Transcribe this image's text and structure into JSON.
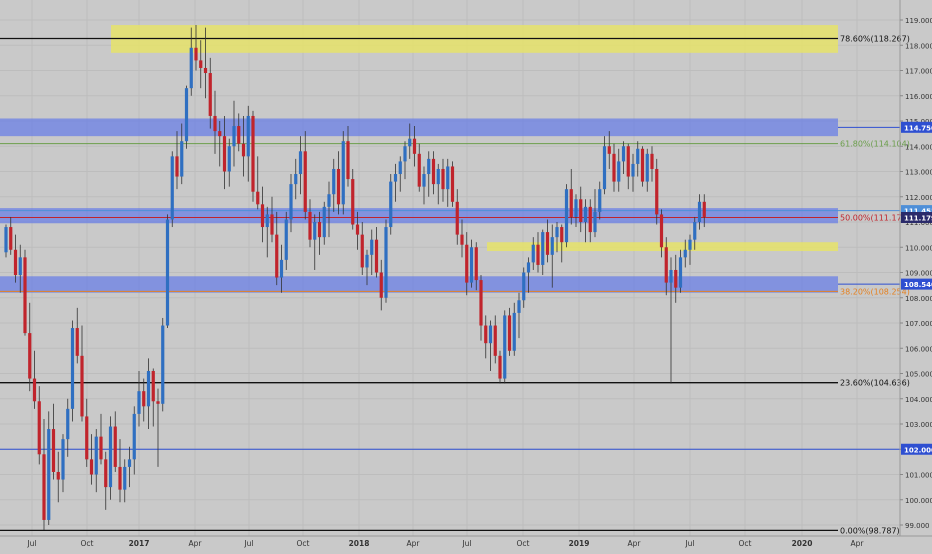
{
  "chart_data": {
    "type": "candlestick",
    "title": "",
    "xlabel": "",
    "ylabel": "",
    "ylim": [
      98.6,
      119.3
    ],
    "grid": true,
    "colors": {
      "background": "#c9c9c9",
      "grid": "#bdbdbd",
      "up_candle": "#2f6fc1",
      "down_candle": "#c0242c",
      "yellow_zone": "#e6e36a",
      "blue_zone": "#6a7fe6",
      "fib_green": "#6b9e4b",
      "fib_orange": "#e5801f",
      "fib_red": "#c0242c",
      "hline_black": "#111111",
      "hline_blue": "#2e4fd1"
    },
    "x_ticks": [
      "Jul",
      "Oct",
      "2017",
      "Apr",
      "Jul",
      "Oct",
      "2018",
      "Apr",
      "Jul",
      "Oct",
      "2019",
      "Apr",
      "Jul",
      "Oct",
      "2020",
      "Apr"
    ],
    "y_ticks": [
      "119.000",
      "118.000",
      "117.000",
      "116.000",
      "115.000",
      "114.000",
      "113.000",
      "112.000",
      "111.000",
      "110.000",
      "109.000",
      "108.000",
      "107.000",
      "106.000",
      "105.000",
      "104.000",
      "103.000",
      "102.000",
      "101.000",
      "100.000",
      "99.000"
    ],
    "price_badges": [
      {
        "label": "114.750",
        "value": 114.75,
        "color": "#2e4fd1"
      },
      {
        "label": "111.451",
        "value": 111.451,
        "color": "#4e8fd8"
      },
      {
        "label": "111.179",
        "value": 111.179,
        "color": "#2a2a6a"
      },
      {
        "label": "108.540",
        "value": 108.54,
        "color": "#2e4fd1"
      },
      {
        "label": "102.000",
        "value": 102.0,
        "color": "#2e4fd1"
      }
    ],
    "fib_levels": [
      {
        "label": "78.60%(118.267)",
        "value": 118.267,
        "color": "#111111"
      },
      {
        "label": "61.80%(114.104)",
        "value": 114.104,
        "color": "#6b9e4b"
      },
      {
        "label": "50.00%(111.179)",
        "value": 111.179,
        "color": "#c0242c"
      },
      {
        "label": "38.20%(108.254)",
        "value": 108.254,
        "color": "#e5801f"
      },
      {
        "label": "23.60%(104.636)",
        "value": 104.636,
        "color": "#111111"
      },
      {
        "label": "0.00%(98.787)",
        "value": 98.787,
        "color": "#111111"
      }
    ],
    "zones": [
      {
        "type": "yellow",
        "y_top": 118.8,
        "y_bottom": 117.7,
        "x_start": 25,
        "x_end": 200
      },
      {
        "type": "blue",
        "y_top": 115.1,
        "y_bottom": 114.4,
        "x_start": 0,
        "x_end": 200
      },
      {
        "type": "blue",
        "y_top": 111.55,
        "y_bottom": 110.95,
        "x_start": 0,
        "x_end": 200
      },
      {
        "type": "yellow",
        "y_top": 110.2,
        "y_bottom": 109.85,
        "x_start": 112,
        "x_end": 200
      },
      {
        "type": "blue",
        "y_top": 108.85,
        "y_bottom": 108.2,
        "x_start": 0,
        "x_end": 200
      }
    ],
    "extra_hlines": [
      {
        "value": 102.0,
        "color": "#2e4fd1"
      }
    ],
    "candles": [
      [
        109.8,
        110.9,
        109.6,
        110.8
      ],
      [
        110.8,
        111.2,
        109.7,
        109.9
      ],
      [
        109.9,
        110.5,
        108.6,
        108.9
      ],
      [
        108.9,
        110.1,
        108.2,
        109.6
      ],
      [
        109.6,
        109.9,
        106.5,
        106.6
      ],
      [
        106.6,
        107.8,
        104.3,
        104.8
      ],
      [
        104.8,
        105.9,
        103.6,
        103.9
      ],
      [
        103.9,
        104.5,
        101.4,
        101.8
      ],
      [
        101.8,
        103.2,
        98.8,
        99.2
      ],
      [
        99.2,
        103.5,
        99.0,
        102.8
      ],
      [
        102.8,
        103.8,
        100.8,
        101.1
      ],
      [
        101.1,
        101.9,
        99.9,
        100.8
      ],
      [
        100.8,
        102.6,
        100.3,
        102.4
      ],
      [
        102.4,
        104.0,
        101.7,
        103.6
      ],
      [
        103.6,
        107.1,
        103.1,
        106.8
      ],
      [
        106.8,
        107.6,
        105.4,
        105.7
      ],
      [
        105.7,
        106.9,
        103.1,
        103.3
      ],
      [
        103.3,
        104.0,
        101.3,
        101.6
      ],
      [
        101.6,
        102.6,
        100.6,
        101.0
      ],
      [
        101.0,
        102.8,
        100.3,
        102.5
      ],
      [
        102.5,
        103.4,
        101.4,
        101.6
      ],
      [
        101.6,
        101.9,
        99.6,
        100.5
      ],
      [
        100.5,
        103.3,
        100.0,
        102.9
      ],
      [
        102.9,
        103.5,
        101.1,
        101.3
      ],
      [
        101.3,
        102.4,
        99.9,
        100.4
      ],
      [
        100.4,
        101.6,
        99.9,
        101.3
      ],
      [
        101.3,
        102.1,
        100.5,
        101.6
      ],
      [
        101.6,
        103.7,
        101.0,
        103.4
      ],
      [
        103.4,
        105.1,
        102.9,
        104.3
      ],
      [
        104.3,
        104.8,
        103.1,
        103.7
      ],
      [
        103.7,
        105.6,
        102.8,
        105.1
      ],
      [
        105.1,
        105.2,
        102.9,
        103.9
      ],
      [
        103.9,
        104.4,
        101.3,
        103.8
      ],
      [
        103.8,
        107.2,
        103.5,
        106.9
      ],
      [
        106.9,
        111.3,
        106.8,
        111.1
      ],
      [
        111.1,
        113.8,
        110.8,
        113.6
      ],
      [
        113.6,
        114.6,
        112.3,
        112.8
      ],
      [
        112.8,
        114.9,
        112.5,
        114.2
      ],
      [
        114.2,
        116.4,
        113.9,
        116.3
      ],
      [
        116.3,
        118.7,
        116.0,
        117.9
      ],
      [
        117.9,
        118.8,
        117.0,
        117.4
      ],
      [
        117.4,
        118.2,
        116.3,
        117.1
      ],
      [
        117.1,
        118.7,
        115.9,
        116.9
      ],
      [
        116.9,
        117.5,
        114.7,
        115.2
      ],
      [
        115.2,
        116.2,
        113.7,
        114.6
      ],
      [
        114.6,
        115.0,
        113.2,
        114.4
      ],
      [
        114.4,
        115.2,
        112.3,
        113.0
      ],
      [
        113.0,
        114.3,
        112.4,
        114.0
      ],
      [
        114.0,
        115.8,
        113.2,
        114.8
      ],
      [
        114.8,
        115.3,
        113.8,
        114.1
      ],
      [
        114.1,
        115.2,
        112.8,
        113.6
      ],
      [
        113.6,
        115.6,
        112.6,
        115.2
      ],
      [
        115.2,
        115.4,
        111.8,
        112.2
      ],
      [
        112.2,
        113.6,
        111.5,
        111.7
      ],
      [
        111.7,
        112.4,
        110.2,
        110.8
      ],
      [
        110.8,
        111.6,
        109.6,
        111.3
      ],
      [
        111.3,
        112.0,
        110.2,
        110.5
      ],
      [
        110.5,
        111.4,
        108.5,
        108.8
      ],
      [
        108.8,
        110.1,
        108.2,
        109.5
      ],
      [
        109.5,
        111.4,
        109.1,
        111.1
      ],
      [
        111.1,
        112.9,
        110.6,
        112.5
      ],
      [
        112.5,
        113.5,
        111.9,
        112.9
      ],
      [
        112.9,
        114.4,
        112.1,
        113.8
      ],
      [
        113.8,
        114.6,
        111.1,
        111.4
      ],
      [
        111.4,
        111.9,
        110.0,
        110.3
      ],
      [
        110.3,
        111.3,
        109.1,
        111.0
      ],
      [
        111.0,
        111.4,
        109.7,
        110.4
      ],
      [
        110.4,
        111.8,
        110.1,
        111.6
      ],
      [
        111.6,
        112.6,
        110.4,
        112.1
      ],
      [
        112.1,
        113.5,
        111.4,
        113.1
      ],
      [
        113.1,
        113.8,
        111.3,
        111.7
      ],
      [
        111.7,
        114.6,
        111.3,
        114.2
      ],
      [
        114.2,
        114.8,
        112.4,
        112.7
      ],
      [
        112.7,
        113.1,
        110.7,
        110.9
      ],
      [
        110.9,
        111.4,
        109.9,
        110.5
      ],
      [
        110.5,
        111.0,
        108.9,
        109.2
      ],
      [
        109.2,
        109.9,
        108.5,
        109.7
      ],
      [
        109.7,
        110.7,
        108.9,
        110.3
      ],
      [
        110.3,
        110.8,
        108.8,
        109.0
      ],
      [
        109.0,
        109.5,
        107.5,
        108.0
      ],
      [
        108.0,
        111.1,
        107.8,
        110.8
      ],
      [
        110.8,
        112.9,
        110.5,
        112.6
      ],
      [
        112.6,
        113.3,
        111.8,
        112.9
      ],
      [
        112.9,
        113.6,
        112.2,
        113.4
      ],
      [
        113.4,
        114.2,
        112.7,
        114.0
      ],
      [
        114.0,
        114.9,
        113.5,
        114.3
      ],
      [
        114.3,
        114.8,
        113.2,
        113.7
      ],
      [
        113.7,
        114.1,
        112.2,
        112.4
      ],
      [
        112.4,
        113.2,
        111.7,
        112.9
      ],
      [
        112.9,
        113.8,
        112.0,
        113.5
      ],
      [
        113.5,
        113.8,
        112.1,
        112.5
      ],
      [
        112.5,
        113.3,
        111.7,
        113.1
      ],
      [
        113.1,
        113.5,
        111.8,
        112.3
      ],
      [
        112.3,
        113.5,
        111.6,
        113.2
      ],
      [
        113.2,
        113.4,
        111.6,
        111.8
      ],
      [
        111.8,
        112.3,
        110.1,
        110.5
      ],
      [
        110.5,
        111.1,
        109.6,
        110.1
      ],
      [
        110.1,
        110.6,
        108.1,
        108.6
      ],
      [
        108.6,
        110.3,
        108.4,
        110.0
      ],
      [
        110.0,
        110.2,
        108.3,
        108.7
      ],
      [
        108.7,
        108.9,
        106.3,
        106.9
      ],
      [
        106.9,
        107.3,
        105.6,
        106.2
      ],
      [
        106.2,
        107.1,
        105.1,
        106.9
      ],
      [
        106.9,
        107.3,
        105.4,
        105.7
      ],
      [
        105.7,
        105.9,
        104.6,
        104.8
      ],
      [
        104.8,
        107.5,
        104.6,
        107.3
      ],
      [
        107.3,
        107.6,
        105.7,
        105.9
      ],
      [
        105.9,
        107.8,
        105.7,
        107.4
      ],
      [
        107.4,
        108.2,
        106.4,
        107.9
      ],
      [
        107.9,
        109.2,
        107.6,
        109.0
      ],
      [
        109.0,
        109.6,
        108.2,
        109.4
      ],
      [
        109.4,
        110.4,
        109.1,
        110.1
      ],
      [
        110.1,
        110.6,
        109.0,
        109.3
      ],
      [
        109.3,
        110.7,
        108.9,
        110.6
      ],
      [
        110.6,
        111.1,
        109.4,
        109.7
      ],
      [
        109.7,
        110.9,
        108.4,
        110.4
      ],
      [
        110.4,
        111.0,
        109.8,
        110.8
      ],
      [
        110.8,
        110.9,
        109.4,
        110.2
      ],
      [
        110.2,
        112.5,
        110.0,
        112.3
      ],
      [
        112.3,
        113.1,
        110.9,
        111.2
      ],
      [
        111.2,
        112.1,
        110.8,
        111.9
      ],
      [
        111.9,
        112.4,
        110.6,
        111.0
      ],
      [
        111.0,
        111.9,
        110.2,
        111.6
      ],
      [
        111.6,
        111.9,
        110.2,
        110.6
      ],
      [
        110.6,
        112.3,
        110.4,
        111.4
      ],
      [
        111.4,
        112.6,
        111.1,
        112.3
      ],
      [
        112.3,
        114.4,
        112.1,
        114.0
      ],
      [
        114.0,
        114.6,
        113.1,
        113.7
      ],
      [
        113.7,
        114.1,
        112.2,
        112.6
      ],
      [
        112.6,
        113.9,
        112.2,
        113.4
      ],
      [
        113.4,
        114.2,
        112.9,
        114.0
      ],
      [
        114.0,
        114.1,
        112.3,
        112.8
      ],
      [
        112.8,
        113.7,
        112.2,
        113.3
      ],
      [
        113.3,
        114.2,
        112.8,
        113.9
      ],
      [
        113.9,
        114.0,
        112.4,
        112.6
      ],
      [
        112.6,
        113.9,
        112.2,
        113.7
      ],
      [
        113.7,
        114.0,
        112.6,
        113.1
      ],
      [
        113.1,
        113.5,
        110.9,
        111.3
      ],
      [
        111.3,
        111.5,
        109.6,
        110.0
      ],
      [
        110.0,
        110.4,
        108.1,
        108.6
      ],
      [
        108.6,
        109.6,
        104.6,
        109.1
      ],
      [
        109.1,
        109.7,
        107.8,
        108.4
      ],
      [
        108.4,
        109.9,
        108.2,
        109.6
      ],
      [
        109.6,
        110.3,
        109.2,
        109.9
      ],
      [
        109.9,
        110.5,
        109.3,
        110.3
      ],
      [
        110.3,
        111.2,
        109.9,
        111.0
      ],
      [
        111.0,
        112.1,
        110.7,
        111.8
      ],
      [
        111.8,
        112.1,
        110.8,
        111.2
      ]
    ],
    "bar_spacing": 4.75,
    "first_x": 6
  }
}
